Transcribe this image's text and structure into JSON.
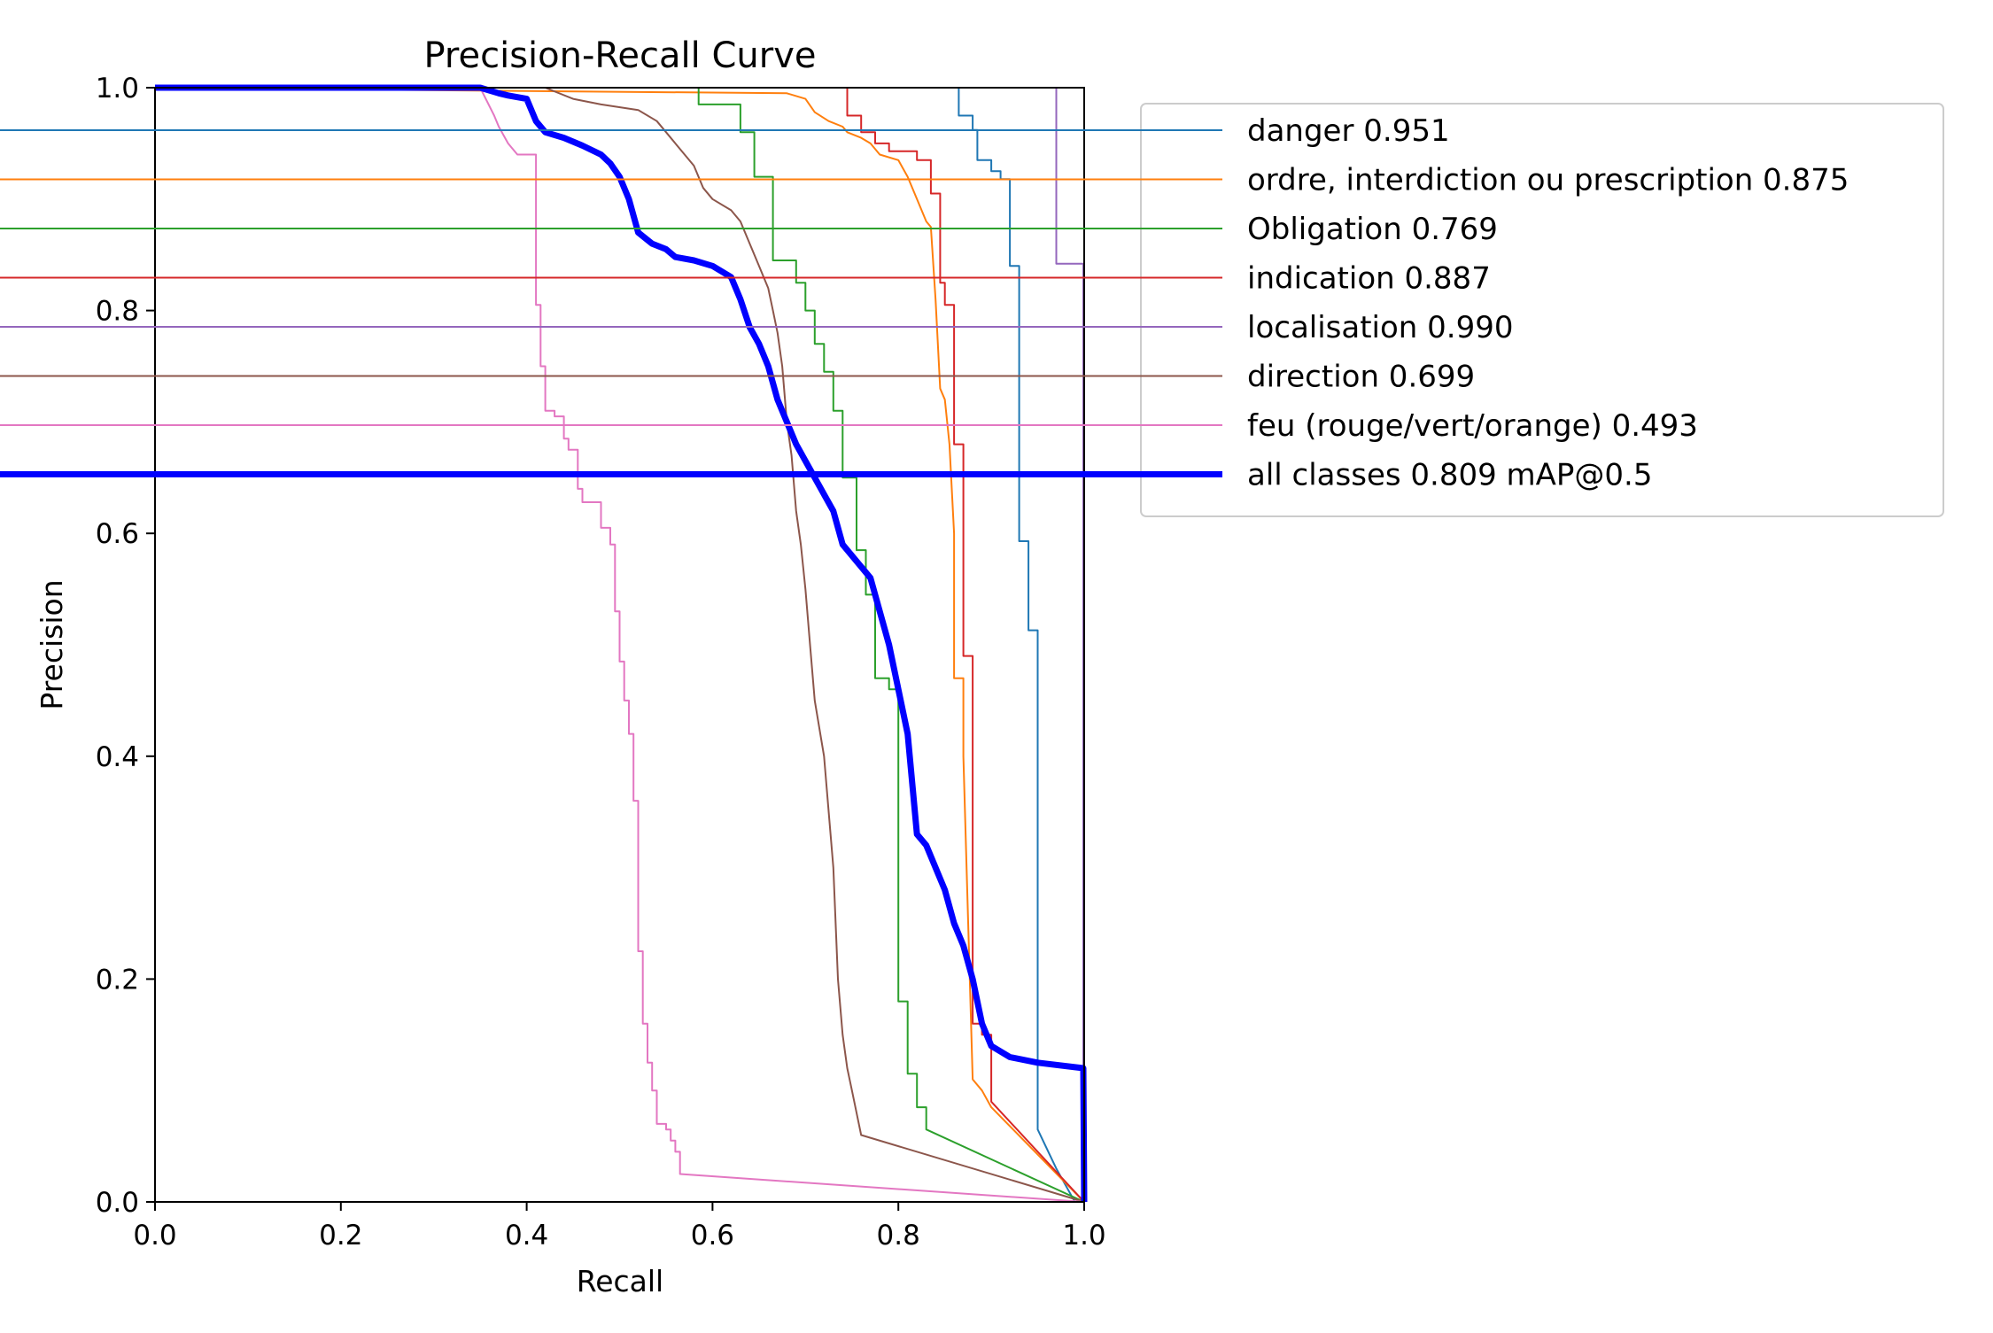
{
  "chart_data": {
    "type": "line",
    "title": "Precision-Recall Curve",
    "xlabel": "Recall",
    "ylabel": "Precision",
    "xlim": [
      0,
      1
    ],
    "ylim": [
      0,
      1
    ],
    "xticks": [
      "0.0",
      "0.2",
      "0.4",
      "0.6",
      "0.8",
      "1.0"
    ],
    "yticks": [
      "0.0",
      "0.2",
      "0.4",
      "0.6",
      "0.8",
      "1.0"
    ],
    "grid": false,
    "legend_position": "outside-top-right",
    "series": [
      {
        "name": "danger 0.951",
        "color": "#1f77b4",
        "width": 2,
        "points": [
          [
            0.865,
            1.0
          ],
          [
            0.865,
            0.975
          ],
          [
            0.88,
            0.975
          ],
          [
            0.88,
            0.962
          ],
          [
            0.885,
            0.962
          ],
          [
            0.885,
            0.935
          ],
          [
            0.9,
            0.935
          ],
          [
            0.9,
            0.925
          ],
          [
            0.91,
            0.925
          ],
          [
            0.91,
            0.918
          ],
          [
            0.92,
            0.918
          ],
          [
            0.92,
            0.84
          ],
          [
            0.93,
            0.84
          ],
          [
            0.93,
            0.593
          ],
          [
            0.94,
            0.593
          ],
          [
            0.94,
            0.513
          ],
          [
            0.95,
            0.513
          ],
          [
            0.95,
            0.065
          ],
          [
            0.97,
            0.03
          ],
          [
            0.99,
            0.0
          ],
          [
            1.0,
            0.0
          ]
        ]
      },
      {
        "name": "ordre, interdiction ou prescription 0.875",
        "color": "#ff7f0e",
        "width": 2,
        "points": [
          [
            0.0,
            1.0
          ],
          [
            0.68,
            0.995
          ],
          [
            0.7,
            0.99
          ],
          [
            0.71,
            0.978
          ],
          [
            0.725,
            0.97
          ],
          [
            0.74,
            0.965
          ],
          [
            0.745,
            0.96
          ],
          [
            0.76,
            0.955
          ],
          [
            0.77,
            0.95
          ],
          [
            0.78,
            0.94
          ],
          [
            0.8,
            0.935
          ],
          [
            0.81,
            0.92
          ],
          [
            0.82,
            0.9
          ],
          [
            0.83,
            0.88
          ],
          [
            0.835,
            0.875
          ],
          [
            0.84,
            0.81
          ],
          [
            0.845,
            0.73
          ],
          [
            0.85,
            0.72
          ],
          [
            0.855,
            0.68
          ],
          [
            0.86,
            0.6
          ],
          [
            0.86,
            0.47
          ],
          [
            0.87,
            0.47
          ],
          [
            0.87,
            0.4
          ],
          [
            0.88,
            0.11
          ],
          [
            0.89,
            0.1
          ],
          [
            0.9,
            0.085
          ],
          [
            1.0,
            0.0
          ]
        ]
      },
      {
        "name": "Obligation 0.769",
        "color": "#2ca02c",
        "width": 2,
        "points": [
          [
            0.0,
            1.0
          ],
          [
            0.585,
            1.0
          ],
          [
            0.585,
            0.985
          ],
          [
            0.63,
            0.985
          ],
          [
            0.63,
            0.96
          ],
          [
            0.645,
            0.96
          ],
          [
            0.645,
            0.92
          ],
          [
            0.665,
            0.92
          ],
          [
            0.665,
            0.845
          ],
          [
            0.69,
            0.845
          ],
          [
            0.69,
            0.825
          ],
          [
            0.7,
            0.825
          ],
          [
            0.7,
            0.8
          ],
          [
            0.71,
            0.8
          ],
          [
            0.71,
            0.77
          ],
          [
            0.72,
            0.77
          ],
          [
            0.72,
            0.745
          ],
          [
            0.73,
            0.745
          ],
          [
            0.73,
            0.71
          ],
          [
            0.74,
            0.71
          ],
          [
            0.74,
            0.65
          ],
          [
            0.755,
            0.65
          ],
          [
            0.755,
            0.585
          ],
          [
            0.765,
            0.585
          ],
          [
            0.765,
            0.545
          ],
          [
            0.775,
            0.545
          ],
          [
            0.775,
            0.47
          ],
          [
            0.79,
            0.47
          ],
          [
            0.79,
            0.46
          ],
          [
            0.8,
            0.46
          ],
          [
            0.8,
            0.18
          ],
          [
            0.81,
            0.18
          ],
          [
            0.81,
            0.115
          ],
          [
            0.82,
            0.115
          ],
          [
            0.82,
            0.085
          ],
          [
            0.83,
            0.085
          ],
          [
            0.83,
            0.065
          ],
          [
            1.0,
            0.0
          ]
        ]
      },
      {
        "name": "indication 0.887",
        "color": "#d62728",
        "width": 2,
        "points": [
          [
            0.745,
            1.0
          ],
          [
            0.745,
            0.975
          ],
          [
            0.76,
            0.975
          ],
          [
            0.76,
            0.96
          ],
          [
            0.775,
            0.96
          ],
          [
            0.775,
            0.95
          ],
          [
            0.79,
            0.95
          ],
          [
            0.79,
            0.943
          ],
          [
            0.82,
            0.943
          ],
          [
            0.82,
            0.935
          ],
          [
            0.835,
            0.935
          ],
          [
            0.835,
            0.905
          ],
          [
            0.845,
            0.905
          ],
          [
            0.845,
            0.825
          ],
          [
            0.85,
            0.825
          ],
          [
            0.85,
            0.805
          ],
          [
            0.86,
            0.805
          ],
          [
            0.86,
            0.68
          ],
          [
            0.87,
            0.68
          ],
          [
            0.87,
            0.49
          ],
          [
            0.88,
            0.49
          ],
          [
            0.88,
            0.16
          ],
          [
            0.89,
            0.16
          ],
          [
            0.89,
            0.15
          ],
          [
            0.9,
            0.15
          ],
          [
            0.9,
            0.09
          ],
          [
            1.0,
            0.0
          ]
        ]
      },
      {
        "name": "localisation 0.990",
        "color": "#9467bd",
        "width": 2,
        "points": [
          [
            0.97,
            1.0
          ],
          [
            0.97,
            0.842
          ],
          [
            0.999,
            0.842
          ],
          [
            0.999,
            0.0
          ],
          [
            1.0,
            0.0
          ]
        ]
      },
      {
        "name": "direction 0.699",
        "color": "#8c564b",
        "width": 2,
        "points": [
          [
            0.0,
            1.0
          ],
          [
            0.42,
            1.0
          ],
          [
            0.45,
            0.99
          ],
          [
            0.48,
            0.985
          ],
          [
            0.52,
            0.98
          ],
          [
            0.54,
            0.97
          ],
          [
            0.55,
            0.96
          ],
          [
            0.56,
            0.95
          ],
          [
            0.57,
            0.94
          ],
          [
            0.58,
            0.93
          ],
          [
            0.59,
            0.91
          ],
          [
            0.6,
            0.9
          ],
          [
            0.62,
            0.89
          ],
          [
            0.63,
            0.88
          ],
          [
            0.64,
            0.86
          ],
          [
            0.65,
            0.84
          ],
          [
            0.66,
            0.82
          ],
          [
            0.665,
            0.8
          ],
          [
            0.67,
            0.78
          ],
          [
            0.675,
            0.75
          ],
          [
            0.68,
            0.7
          ],
          [
            0.685,
            0.67
          ],
          [
            0.69,
            0.62
          ],
          [
            0.695,
            0.59
          ],
          [
            0.7,
            0.55
          ],
          [
            0.705,
            0.5
          ],
          [
            0.71,
            0.45
          ],
          [
            0.72,
            0.4
          ],
          [
            0.73,
            0.3
          ],
          [
            0.735,
            0.2
          ],
          [
            0.74,
            0.15
          ],
          [
            0.745,
            0.12
          ],
          [
            0.75,
            0.1
          ],
          [
            0.76,
            0.06
          ],
          [
            1.0,
            0.0
          ]
        ]
      },
      {
        "name": "feu (rouge/vert/orange) 0.493",
        "color": "#e377c2",
        "width": 2,
        "points": [
          [
            0.0,
            1.0
          ],
          [
            0.35,
            1.0
          ],
          [
            0.365,
            0.975
          ],
          [
            0.37,
            0.965
          ],
          [
            0.38,
            0.95
          ],
          [
            0.39,
            0.94
          ],
          [
            0.41,
            0.94
          ],
          [
            0.41,
            0.805
          ],
          [
            0.415,
            0.805
          ],
          [
            0.415,
            0.75
          ],
          [
            0.42,
            0.75
          ],
          [
            0.42,
            0.71
          ],
          [
            0.43,
            0.71
          ],
          [
            0.43,
            0.705
          ],
          [
            0.44,
            0.705
          ],
          [
            0.44,
            0.685
          ],
          [
            0.445,
            0.685
          ],
          [
            0.445,
            0.675
          ],
          [
            0.455,
            0.675
          ],
          [
            0.455,
            0.64
          ],
          [
            0.46,
            0.64
          ],
          [
            0.46,
            0.628
          ],
          [
            0.48,
            0.628
          ],
          [
            0.48,
            0.605
          ],
          [
            0.49,
            0.605
          ],
          [
            0.49,
            0.59
          ],
          [
            0.495,
            0.59
          ],
          [
            0.495,
            0.53
          ],
          [
            0.5,
            0.53
          ],
          [
            0.5,
            0.485
          ],
          [
            0.505,
            0.485
          ],
          [
            0.505,
            0.45
          ],
          [
            0.51,
            0.45
          ],
          [
            0.51,
            0.42
          ],
          [
            0.515,
            0.42
          ],
          [
            0.515,
            0.36
          ],
          [
            0.52,
            0.36
          ],
          [
            0.52,
            0.225
          ],
          [
            0.525,
            0.225
          ],
          [
            0.525,
            0.16
          ],
          [
            0.53,
            0.16
          ],
          [
            0.53,
            0.125
          ],
          [
            0.535,
            0.125
          ],
          [
            0.535,
            0.1
          ],
          [
            0.54,
            0.1
          ],
          [
            0.54,
            0.07
          ],
          [
            0.55,
            0.07
          ],
          [
            0.55,
            0.065
          ],
          [
            0.555,
            0.065
          ],
          [
            0.555,
            0.055
          ],
          [
            0.56,
            0.055
          ],
          [
            0.56,
            0.045
          ],
          [
            0.565,
            0.045
          ],
          [
            0.565,
            0.025
          ],
          [
            1.0,
            0.0
          ]
        ]
      },
      {
        "name": "all classes 0.809 mAP@0.5",
        "color": "#0000ff",
        "width": 7,
        "points": [
          [
            0.0,
            1.0
          ],
          [
            0.35,
            1.0
          ],
          [
            0.37,
            0.995
          ],
          [
            0.38,
            0.993
          ],
          [
            0.4,
            0.99
          ],
          [
            0.41,
            0.97
          ],
          [
            0.42,
            0.96
          ],
          [
            0.44,
            0.955
          ],
          [
            0.46,
            0.948
          ],
          [
            0.48,
            0.94
          ],
          [
            0.49,
            0.932
          ],
          [
            0.5,
            0.92
          ],
          [
            0.51,
            0.9
          ],
          [
            0.52,
            0.87
          ],
          [
            0.535,
            0.86
          ],
          [
            0.55,
            0.855
          ],
          [
            0.56,
            0.848
          ],
          [
            0.58,
            0.845
          ],
          [
            0.6,
            0.84
          ],
          [
            0.62,
            0.83
          ],
          [
            0.63,
            0.81
          ],
          [
            0.64,
            0.785
          ],
          [
            0.65,
            0.77
          ],
          [
            0.66,
            0.75
          ],
          [
            0.67,
            0.72
          ],
          [
            0.68,
            0.7
          ],
          [
            0.69,
            0.68
          ],
          [
            0.7,
            0.665
          ],
          [
            0.71,
            0.65
          ],
          [
            0.72,
            0.635
          ],
          [
            0.73,
            0.62
          ],
          [
            0.74,
            0.59
          ],
          [
            0.75,
            0.58
          ],
          [
            0.76,
            0.57
          ],
          [
            0.77,
            0.56
          ],
          [
            0.78,
            0.53
          ],
          [
            0.79,
            0.5
          ],
          [
            0.8,
            0.46
          ],
          [
            0.81,
            0.42
          ],
          [
            0.82,
            0.33
          ],
          [
            0.83,
            0.32
          ],
          [
            0.84,
            0.3
          ],
          [
            0.85,
            0.28
          ],
          [
            0.86,
            0.25
          ],
          [
            0.87,
            0.23
          ],
          [
            0.88,
            0.2
          ],
          [
            0.89,
            0.16
          ],
          [
            0.9,
            0.14
          ],
          [
            0.92,
            0.13
          ],
          [
            0.95,
            0.125
          ],
          [
            0.999,
            0.12
          ],
          [
            1.0,
            0.0
          ]
        ]
      }
    ]
  }
}
